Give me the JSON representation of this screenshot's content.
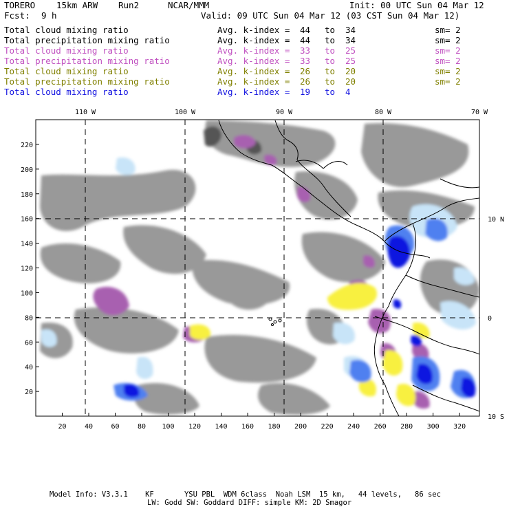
{
  "header": {
    "model": "TORERO",
    "resolution": "15km ARW",
    "run": "Run2",
    "org": "NCAR/MMM",
    "init": "Init: 00 UTC Sun 04 Mar 12",
    "fcst_label": "Fcst:",
    "fcst_value": "9 h",
    "valid": "Valid: 09 UTC Sun 04 Mar 12 (03 CST Sun 04 Mar 12)"
  },
  "fields": [
    {
      "name": "Total cloud mixing ratio",
      "avg": "Avg. k-index =",
      "from": "44",
      "to_word": "to",
      "to": "34",
      "sm": "sm= 2",
      "color": "#000000"
    },
    {
      "name": "Total precipitation mixing ratio",
      "avg": "Avg. k-index =",
      "from": "44",
      "to_word": "to",
      "to": "34",
      "sm": "sm= 2",
      "color": "#000000"
    },
    {
      "name": "Total cloud mixing ratio",
      "avg": "Avg. k-index =",
      "from": "33",
      "to_word": "to",
      "to": "25",
      "sm": "sm= 2",
      "color": "#c050c0"
    },
    {
      "name": "Total precipitation mixing ratio",
      "avg": "Avg. k-index =",
      "from": "33",
      "to_word": "to",
      "to": "25",
      "sm": "sm= 2",
      "color": "#c050c0"
    },
    {
      "name": "Total cloud mixing ratio",
      "avg": "Avg. k-index =",
      "from": "26",
      "to_word": "to",
      "to": "20",
      "sm": "sm= 2",
      "color": "#808000"
    },
    {
      "name": "Total precipitation mixing ratio",
      "avg": "Avg. k-index =",
      "from": "26",
      "to_word": "to",
      "to": "20",
      "sm": "sm= 2",
      "color": "#808000"
    },
    {
      "name": "Total cloud mixing ratio",
      "avg": "Avg. k-index =",
      "from": "19",
      "to_word": "to",
      "to": "4",
      "sm": "",
      "color": "#1010e0"
    }
  ],
  "map": {
    "lon_labels": [
      "110 W",
      "100 W",
      "90 W",
      "80 W",
      "70 W"
    ],
    "lat_labels": [
      "10 N",
      "0",
      "10 S"
    ],
    "y_ticks": [
      "220",
      "200",
      "180",
      "160",
      "140",
      "120",
      "100",
      "80",
      "60",
      "40",
      "20"
    ],
    "x_ticks": [
      "20",
      "40",
      "60",
      "80",
      "100",
      "120",
      "140",
      "160",
      "180",
      "200",
      "220",
      "240",
      "260",
      "280",
      "300",
      "320"
    ],
    "colors": {
      "gray_dark": "#555555",
      "gray": "#999999",
      "purple": "#a860b0",
      "yellow": "#f8f040",
      "light_blue": "#c8e4f8",
      "mid_blue": "#5080f0",
      "blue": "#0818e0"
    }
  },
  "footer": {
    "line1": "Model Info: V3.3.1    KF       YSU PBL  WDM 6class  Noah LSM  15 km,   44 levels,   86 sec",
    "line2": "LW: Godd SW: Goddard DIFF: simple KM: 2D Smagor"
  }
}
